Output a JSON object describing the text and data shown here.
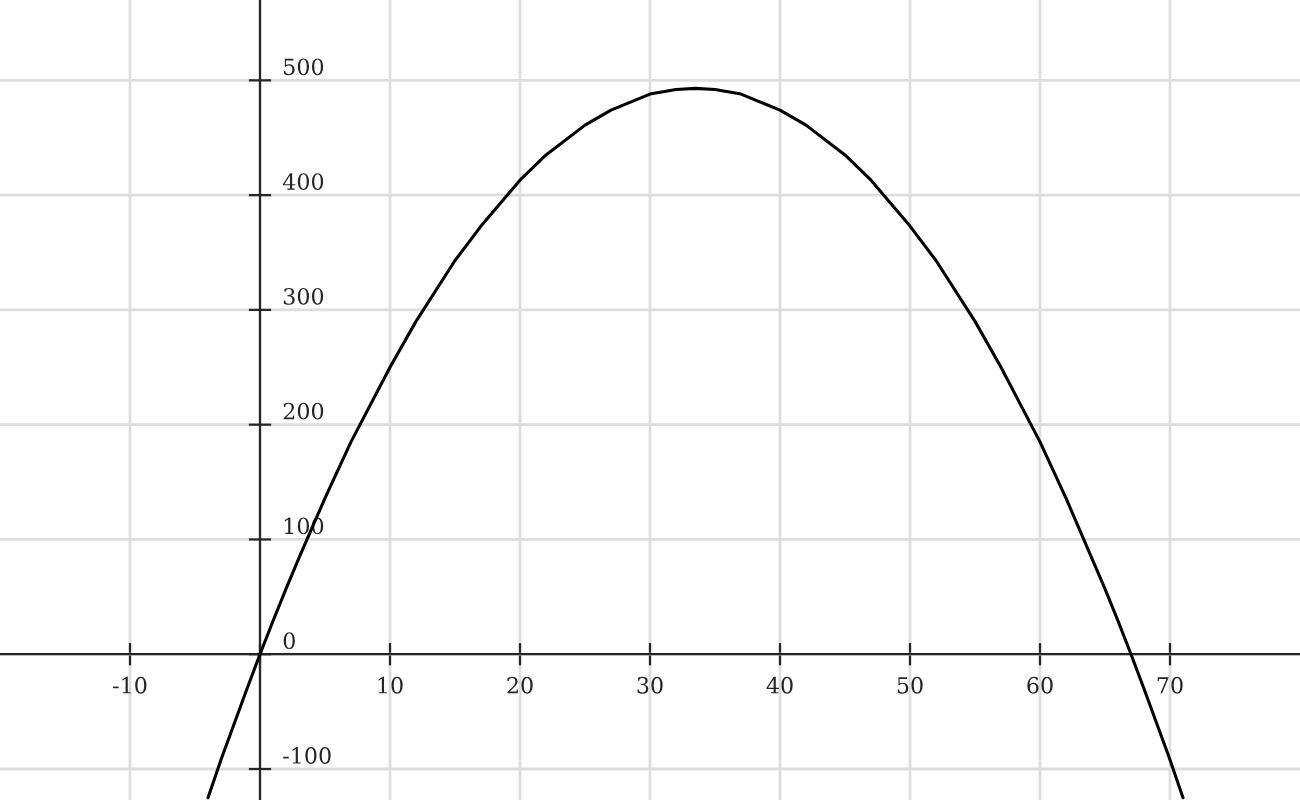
{
  "chart_data": {
    "type": "line",
    "x": [
      -4,
      -3,
      -2,
      -1,
      0,
      1,
      2,
      3,
      4,
      5,
      7,
      10,
      12,
      15,
      17,
      20,
      22,
      25,
      27,
      30,
      32,
      33.5,
      35,
      37,
      40,
      42,
      45,
      47,
      50,
      52,
      55,
      57,
      60,
      62,
      65,
      66,
      67,
      68,
      69,
      70,
      71
    ],
    "series": [
      {
        "color": "#000000",
        "values": [
          -125,
          -92,
          -61,
          -30,
          0,
          29,
          57,
          84,
          110,
          136,
          185,
          250,
          290,
          343,
          373,
          413,
          435,
          461,
          474,
          488,
          492,
          493,
          492,
          488,
          474,
          461,
          435,
          413,
          373,
          343,
          290,
          250,
          185,
          136,
          57,
          29,
          0,
          -30,
          -61,
          -92,
          -125
        ]
      }
    ],
    "xlim": [
      -20,
      80
    ],
    "ylim": [
      -127,
      570
    ],
    "xticks": [
      -10,
      {
        "value": 0,
        "label": null
      },
      10,
      20,
      30,
      40,
      50,
      60,
      70
    ],
    "yticks": [
      -100,
      0,
      100,
      200,
      300,
      400,
      500
    ],
    "grid": true,
    "marker": "none",
    "line_style": "solid"
  }
}
